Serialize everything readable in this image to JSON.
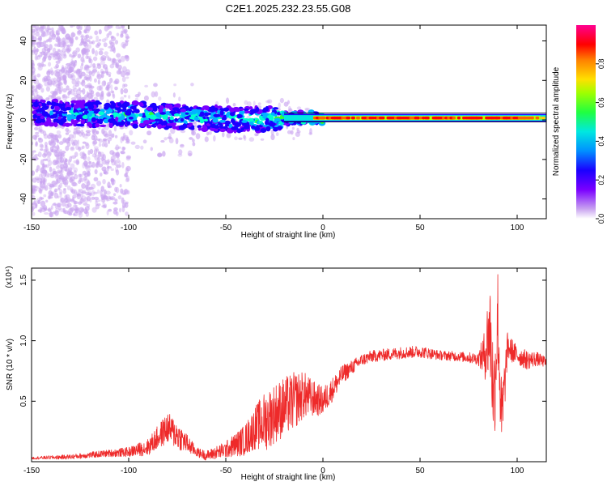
{
  "title": "C2E1.2025.232.23.55.G08",
  "chart_data": [
    {
      "type": "heatmap",
      "name": "spectrogram",
      "xlabel": "Height of straight line (km)",
      "ylabel": "Frequency (Hz)",
      "xlim": [
        -150,
        115
      ],
      "ylim": [
        -50,
        48
      ],
      "xticks": [
        -150,
        -100,
        -50,
        0,
        50,
        100
      ],
      "yticks": [
        -40,
        -20,
        0,
        20,
        40
      ],
      "colorbar": {
        "label": "Normalized spectral amplitude",
        "range": [
          0,
          1
        ],
        "ticks": [
          0.0,
          0.2,
          0.4,
          0.6,
          0.8
        ],
        "tick_labels": [
          "0.0",
          "0.2",
          "0.4",
          "0.6",
          "0.8"
        ],
        "colormap": [
          "#e8d6f6",
          "#7a00ff",
          "#1a00ff",
          "#00b4ff",
          "#00ffd0",
          "#30ff30",
          "#c0ff00",
          "#ffd000",
          "#ff6000",
          "#ff0000",
          "#ff0090"
        ]
      },
      "ridge": {
        "description": "dominant ridge of amplitude near 0-3 Hz",
        "x": [
          -150,
          -120,
          -100,
          -80,
          -60,
          -40,
          -20,
          0,
          20,
          50,
          80,
          100,
          115
        ],
        "freq_hz": [
          4,
          3,
          3,
          2,
          1,
          0,
          1,
          1,
          1,
          1,
          1,
          1,
          0
        ],
        "peak_amplitude": [
          0.35,
          0.45,
          0.5,
          0.5,
          0.45,
          0.5,
          0.6,
          0.95,
          0.95,
          0.95,
          0.95,
          0.95,
          0.7
        ]
      }
    },
    {
      "type": "line",
      "name": "snr",
      "xlabel": "Height of straight line (km)",
      "ylabel": "SNR (10 * v/v)",
      "exponent_label": "(x10⁴)",
      "xlim": [
        -150,
        115
      ],
      "ylim": [
        0,
        1.6
      ],
      "xticks": [
        -150,
        -100,
        -50,
        0,
        50,
        100
      ],
      "yticks": [
        0.5,
        1.0,
        1.5
      ],
      "ytick_labels": [
        "0.5",
        "1.0",
        "1.5"
      ],
      "color": "#ee2a2a",
      "series": [
        {
          "name": "SNR",
          "x": [
            -150,
            -130,
            -110,
            -100,
            -90,
            -85,
            -80,
            -75,
            -70,
            -65,
            -60,
            -50,
            -40,
            -35,
            -30,
            -25,
            -20,
            -15,
            -10,
            -5,
            0,
            5,
            10,
            15,
            20,
            25,
            30,
            40,
            50,
            60,
            70,
            80,
            83,
            86,
            88,
            90,
            92,
            95,
            100,
            105,
            110,
            115
          ],
          "y": [
            0.03,
            0.04,
            0.07,
            0.08,
            0.12,
            0.2,
            0.28,
            0.22,
            0.15,
            0.08,
            0.05,
            0.1,
            0.18,
            0.28,
            0.33,
            0.4,
            0.45,
            0.5,
            0.55,
            0.52,
            0.5,
            0.6,
            0.72,
            0.78,
            0.84,
            0.87,
            0.88,
            0.9,
            0.91,
            0.88,
            0.87,
            0.85,
            0.88,
            1.1,
            0.5,
            1.2,
            0.3,
            0.95,
            0.88,
            0.84,
            0.85,
            0.82
          ],
          "noise": [
            0.01,
            0.02,
            0.03,
            0.04,
            0.07,
            0.1,
            0.13,
            0.12,
            0.08,
            0.04,
            0.04,
            0.07,
            0.13,
            0.18,
            0.25,
            0.25,
            0.25,
            0.24,
            0.2,
            0.15,
            0.12,
            0.1,
            0.08,
            0.06,
            0.05,
            0.05,
            0.05,
            0.05,
            0.05,
            0.04,
            0.04,
            0.05,
            0.2,
            0.45,
            0.45,
            0.45,
            0.35,
            0.12,
            0.08,
            0.08,
            0.06,
            0.04
          ]
        }
      ]
    }
  ]
}
